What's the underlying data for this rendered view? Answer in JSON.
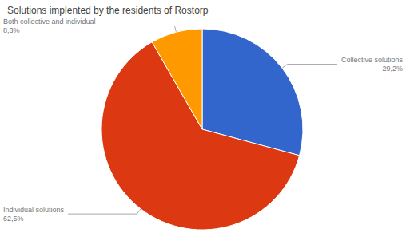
{
  "chart_data": {
    "type": "pie",
    "title": "Solutions implented by the residents of Rostorp",
    "categories": [
      "Collective solutions",
      "Individual solutions",
      "Both collective and individual"
    ],
    "values": [
      29.2,
      62.5,
      8.3
    ],
    "value_labels": [
      "29,2%",
      "62,5%",
      "8,3%"
    ],
    "colors": [
      "#3366cc",
      "#dc3912",
      "#ff9900"
    ],
    "data_labels": true
  }
}
